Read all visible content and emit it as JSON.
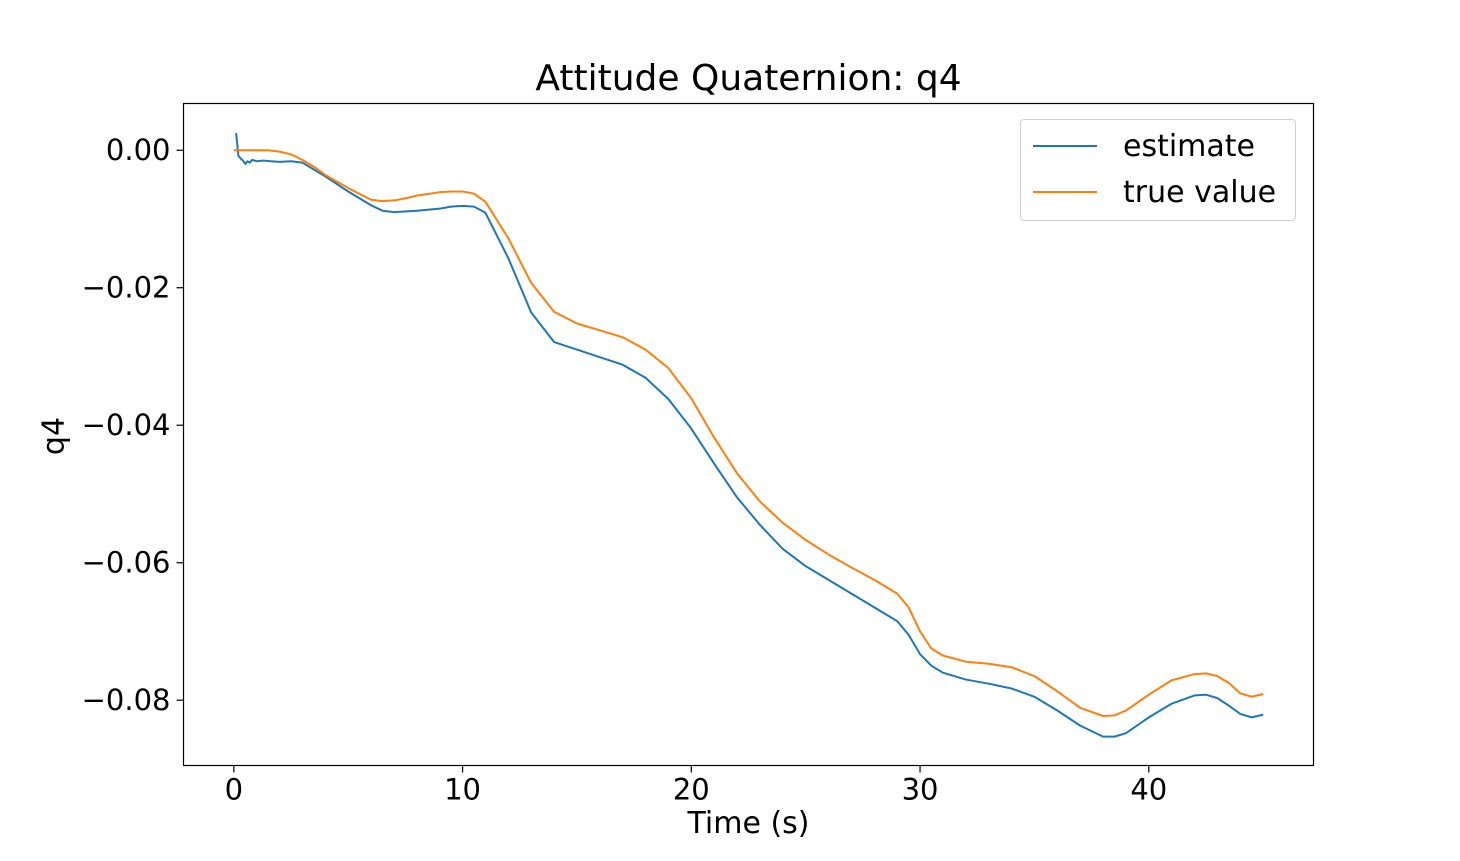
{
  "chart_data": {
    "type": "line",
    "title": "Attitude Quaternion: q4",
    "xlabel": "Time (s)",
    "ylabel": "q4",
    "xlim": [
      -2.2,
      47.2
    ],
    "ylim": [
      -0.0895,
      0.0068
    ],
    "xticks": [
      0,
      10,
      20,
      30,
      40
    ],
    "xtick_labels": [
      "0",
      "10",
      "20",
      "30",
      "40"
    ],
    "yticks": [
      0.0,
      -0.02,
      -0.04,
      -0.06,
      -0.08
    ],
    "ytick_labels": [
      "0.00",
      "−0.02",
      "−0.04",
      "−0.06",
      "−0.08"
    ],
    "grid": false,
    "legend_position": "top-right",
    "series": [
      {
        "name": "estimate",
        "color": "#1f77b4",
        "x": [
          0.1,
          0.2,
          0.3,
          0.4,
          0.5,
          0.6,
          0.7,
          0.8,
          1,
          1.3,
          1.6,
          2,
          2.5,
          3,
          3.5,
          4,
          5,
          6,
          6.5,
          7,
          8,
          9,
          9.5,
          10,
          10.5,
          11,
          12,
          13,
          14,
          15,
          16,
          17,
          18,
          19,
          20,
          21,
          22,
          23,
          24,
          25,
          26,
          27,
          28,
          29,
          29.5,
          30,
          30.5,
          31,
          32,
          33,
          34,
          35,
          36,
          37,
          38,
          38.5,
          39,
          40,
          41,
          42,
          42.5,
          43,
          43.5,
          44,
          44.5,
          45
        ],
        "y": [
          0.0025,
          -0.0008,
          -0.0012,
          -0.0015,
          -0.002,
          -0.0016,
          -0.0018,
          -0.0014,
          -0.0016,
          -0.0015,
          -0.0016,
          -0.0017,
          -0.0016,
          -0.0018,
          -0.0028,
          -0.0038,
          -0.006,
          -0.008,
          -0.0088,
          -0.009,
          -0.0088,
          -0.0085,
          -0.0082,
          -0.0081,
          -0.0082,
          -0.0091,
          -0.0157,
          -0.0236,
          -0.0279,
          -0.029,
          -0.0301,
          -0.0312,
          -0.0331,
          -0.0362,
          -0.0405,
          -0.0456,
          -0.0505,
          -0.0545,
          -0.058,
          -0.0605,
          -0.0625,
          -0.0645,
          -0.0665,
          -0.0685,
          -0.0705,
          -0.0733,
          -0.075,
          -0.076,
          -0.077,
          -0.0776,
          -0.0783,
          -0.0795,
          -0.0815,
          -0.0837,
          -0.0853,
          -0.0853,
          -0.0848,
          -0.0825,
          -0.0805,
          -0.0793,
          -0.0792,
          -0.0797,
          -0.0808,
          -0.082,
          -0.0825,
          -0.0821
        ]
      },
      {
        "name": "true value",
        "color": "#ff7f0e",
        "x": [
          0,
          0.5,
          1,
          1.5,
          2,
          2.5,
          3,
          3.5,
          4,
          5,
          6,
          6.5,
          7,
          7.5,
          8,
          9,
          9.5,
          10,
          10.5,
          11,
          12,
          13,
          14,
          15,
          16,
          17,
          18,
          19,
          20,
          21,
          22,
          23,
          24,
          25,
          26,
          27,
          28,
          29,
          29.5,
          30,
          30.5,
          31,
          32,
          33,
          34,
          35,
          36,
          37,
          38,
          38.5,
          39,
          40,
          41,
          42,
          42.5,
          43,
          43.5,
          44,
          44.5,
          45
        ],
        "y": [
          0.0,
          0.0,
          0.0,
          0.0,
          -0.0002,
          -0.0006,
          -0.0014,
          -0.0024,
          -0.0036,
          -0.0055,
          -0.0072,
          -0.0074,
          -0.0073,
          -0.007,
          -0.0066,
          -0.0061,
          -0.006,
          -0.006,
          -0.0063,
          -0.0075,
          -0.0128,
          -0.0193,
          -0.0235,
          -0.0252,
          -0.0262,
          -0.0272,
          -0.029,
          -0.0317,
          -0.0361,
          -0.0418,
          -0.047,
          -0.0511,
          -0.0542,
          -0.0567,
          -0.0588,
          -0.0607,
          -0.0625,
          -0.0645,
          -0.0665,
          -0.07,
          -0.0725,
          -0.0735,
          -0.0744,
          -0.0747,
          -0.0752,
          -0.0765,
          -0.0787,
          -0.0811,
          -0.0823,
          -0.0822,
          -0.0815,
          -0.0792,
          -0.0771,
          -0.0762,
          -0.0761,
          -0.0765,
          -0.0775,
          -0.079,
          -0.0795,
          -0.0791
        ]
      }
    ]
  }
}
